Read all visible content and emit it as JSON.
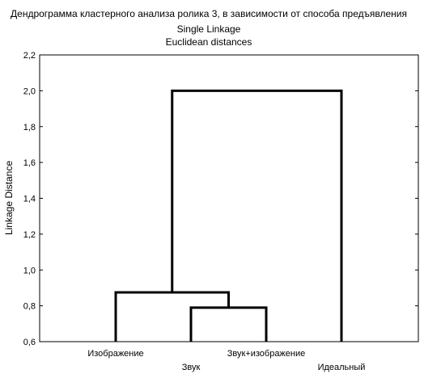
{
  "chart_data": {
    "type": "dendrogram",
    "title": "Дендрограмма кластерного анализа ролика 3, в зависимости от способа предъявления",
    "subtitle1": "Single Linkage",
    "subtitle2": "Euclidean distances",
    "xlabel": "",
    "ylabel": "Linkage Distance",
    "ylim": [
      0.6,
      2.2
    ],
    "yticks": [
      "2,2",
      "2,0",
      "1,8",
      "1,6",
      "1,4",
      "1,2",
      "1,0",
      "0,8",
      "0,6"
    ],
    "ytick_values": [
      2.2,
      2.0,
      1.8,
      1.6,
      1.4,
      1.2,
      1.0,
      0.8,
      0.6
    ],
    "leaves": [
      "Изображение",
      "Звук",
      "Звук+изображение",
      "Идеальный"
    ],
    "merges": [
      {
        "left": 1,
        "right": 2,
        "height": 0.79
      },
      {
        "left": 0,
        "right": "m0",
        "height": 0.875
      },
      {
        "left": "m1",
        "right": 3,
        "height": 2.0
      }
    ],
    "grid": false,
    "legend": "none"
  }
}
